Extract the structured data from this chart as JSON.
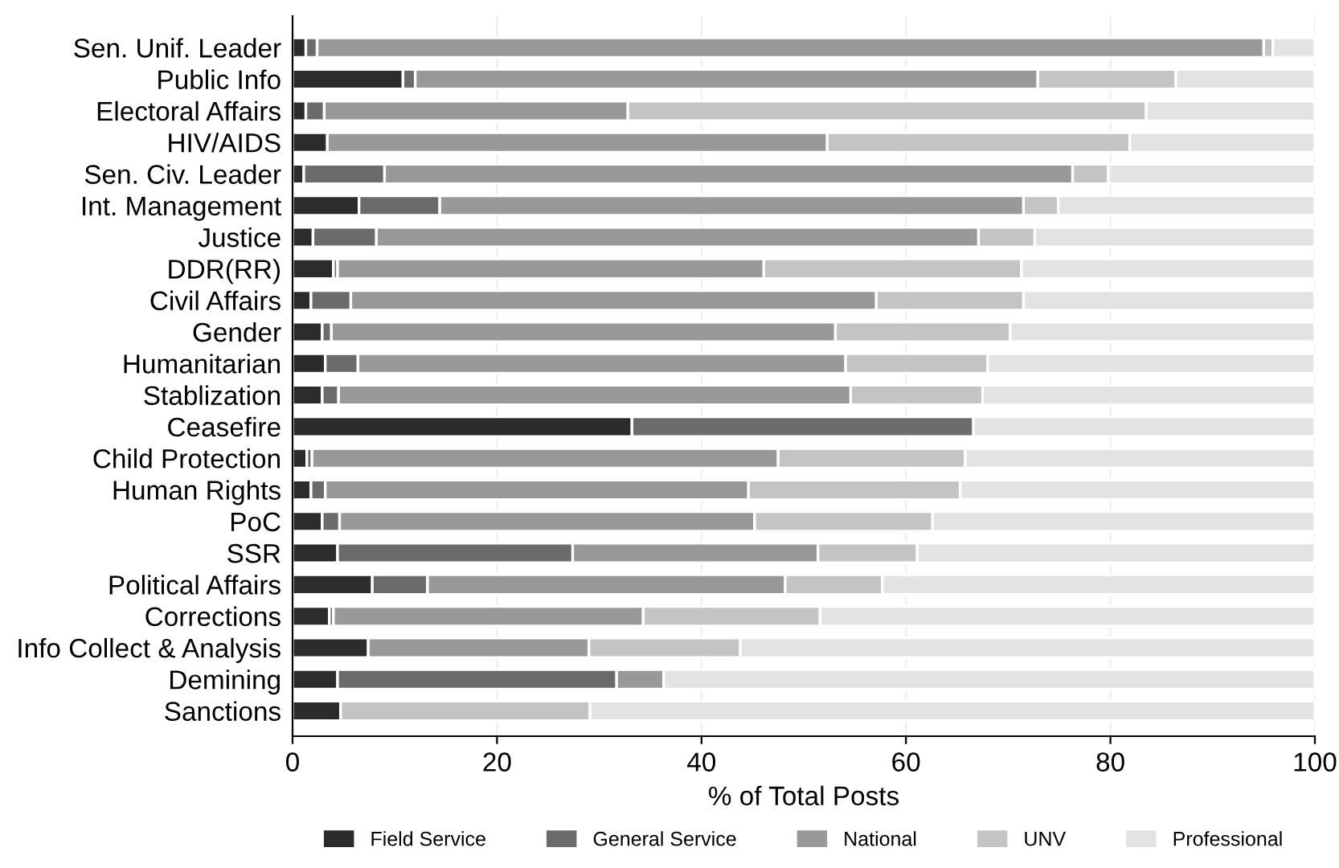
{
  "chart_data": {
    "type": "bar",
    "orientation": "horizontal",
    "stacked": true,
    "xlabel": "% of Total Posts",
    "categories": [
      "Sen. Unif. Leader",
      "Public Info",
      "Electoral Affairs",
      "HIV/AIDS",
      "Sen. Civ. Leader",
      "Int. Management",
      "Justice",
      "DDR(RR)",
      "Civil Affairs",
      "Gender",
      "Humanitarian",
      "Stablization",
      "Ceasefire",
      "Child Protection",
      "Human Rights",
      "PoC",
      "SSR",
      "Political Affairs",
      "Corrections",
      "Info Collect & Analysis",
      "Demining",
      "Sanctions"
    ],
    "series": [
      {
        "name": "Field Service",
        "color": "#2b2b2b",
        "values": [
          1.3,
          10.8,
          1.3,
          3.4,
          1.1,
          6.5,
          2.0,
          4.0,
          1.8,
          2.9,
          3.2,
          2.9,
          33.2,
          1.4,
          1.8,
          2.9,
          4.4,
          7.8,
          3.6,
          7.4,
          4.4,
          4.7
        ]
      },
      {
        "name": "General Service",
        "color": "#6b6b6b",
        "values": [
          1.1,
          1.2,
          1.8,
          0,
          7.9,
          7.9,
          6.2,
          0.4,
          3.9,
          0.9,
          3.2,
          1.6,
          33.4,
          0.5,
          1.4,
          1.7,
          23.0,
          5.4,
          0.4,
          0,
          27.3,
          0
        ]
      },
      {
        "name": "National",
        "color": "#999999",
        "values": [
          92.6,
          60.9,
          29.7,
          48.9,
          67.3,
          57.1,
          58.9,
          41.7,
          51.4,
          49.3,
          47.7,
          50.1,
          0,
          45.6,
          41.4,
          40.6,
          24.0,
          35.0,
          30.3,
          21.6,
          4.6,
          0
        ]
      },
      {
        "name": "UNV",
        "color": "#c4c4c4",
        "values": [
          0.9,
          13.5,
          50.7,
          29.6,
          3.5,
          3.4,
          5.5,
          25.2,
          14.4,
          17.1,
          13.9,
          12.9,
          0,
          18.3,
          20.7,
          17.4,
          9.7,
          9.5,
          17.3,
          14.8,
          0,
          24.4
        ]
      },
      {
        "name": "Professional",
        "color": "#e3e3e3",
        "values": [
          4.1,
          13.6,
          16.5,
          18.1,
          20.2,
          25.1,
          27.4,
          28.7,
          28.5,
          29.8,
          32.0,
          32.5,
          33.4,
          34.2,
          34.7,
          37.4,
          38.9,
          42.3,
          48.4,
          56.2,
          63.7,
          70.9
        ]
      }
    ],
    "xlim": [
      0,
      100
    ],
    "xticks": [
      0,
      20,
      40,
      60,
      80,
      100
    ],
    "grid": "x",
    "legend": "bottom"
  }
}
